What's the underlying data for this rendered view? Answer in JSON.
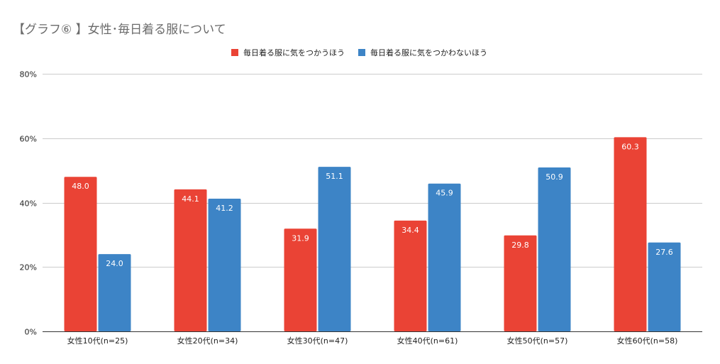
{
  "chart_data": {
    "type": "bar",
    "title": "【グラフ⑥ 】女性･毎日着る服について",
    "categories": [
      "女性10代(n=25)",
      "女性20代(n=34)",
      "女性30代(n=47)",
      "女性40代(n=61)",
      "女性50代(n=57)",
      "女性60代(n=58)"
    ],
    "series": [
      {
        "name": "毎日着る服に気をつかうほう",
        "color": "#ea4335",
        "values": [
          48.0,
          44.1,
          31.9,
          34.4,
          29.8,
          60.3
        ]
      },
      {
        "name": "毎日着る服に気をつかわないほう",
        "color": "#3d84c6",
        "values": [
          24.0,
          41.2,
          51.1,
          45.9,
          50.9,
          27.6
        ]
      }
    ],
    "ylim": [
      0,
      80
    ],
    "yticks": [
      0,
      20,
      40,
      60,
      80
    ],
    "ytick_labels": [
      "0%",
      "20%",
      "40%",
      "60%",
      "80%"
    ],
    "legend_position": "top-center",
    "grid": true,
    "xlabel": "",
    "ylabel": ""
  }
}
